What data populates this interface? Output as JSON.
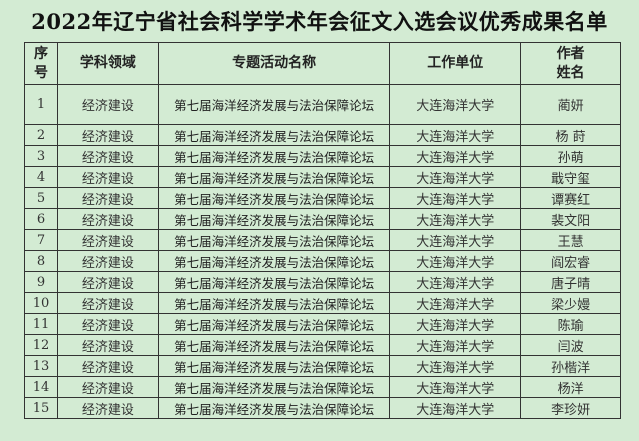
{
  "title": "2022年辽宁省社会科学学术年会征文入选会议优秀成果名单",
  "headers": [
    "序\n号",
    "学科领域",
    "专题活动名称",
    "工作单位",
    "作者\n姓名"
  ],
  "rows": [
    [
      "1",
      "经济建设",
      "第七届海洋经济发展与法治保障论坛",
      "大连海洋大学",
      "蔺妍"
    ],
    [
      "2",
      "经济建设",
      "第七届海洋经济发展与法治保障论坛",
      "大连海洋大学",
      "杨 莳"
    ],
    [
      "3",
      "经济建设",
      "第七届海洋经济发展与法治保障论坛",
      "大连海洋大学",
      "孙萌"
    ],
    [
      "4",
      "经济建设",
      "第七届海洋经济发展与法治保障论坛",
      "大连海洋大学",
      "戢守玺"
    ],
    [
      "5",
      "经济建设",
      "第七届海洋经济发展与法治保障论坛",
      "大连海洋大学",
      "谭赛红"
    ],
    [
      "6",
      "经济建设",
      "第七届海洋经济发展与法治保障论坛",
      "大连海洋大学",
      "裴文阳"
    ],
    [
      "7",
      "经济建设",
      "第七届海洋经济发展与法治保障论坛",
      "大连海洋大学",
      "王慧"
    ],
    [
      "8",
      "经济建设",
      "第七届海洋经济发展与法治保障论坛",
      "大连海洋大学",
      "阎宏睿"
    ],
    [
      "9",
      "经济建设",
      "第七届海洋经济发展与法治保障论坛",
      "大连海洋大学",
      "唐子晴"
    ],
    [
      "10",
      "经济建设",
      "第七届海洋经济发展与法治保障论坛",
      "大连海洋大学",
      "梁少嫚"
    ],
    [
      "11",
      "经济建设",
      "第七届海洋经济发展与法治保障论坛",
      "大连海洋大学",
      "陈瑜"
    ],
    [
      "12",
      "经济建设",
      "第七届海洋经济发展与法治保障论坛",
      "大连海洋大学",
      "闫波"
    ],
    [
      "13",
      "经济建设",
      "第七届海洋经济发展与法治保障论坛",
      "大连海洋大学",
      "孙楷洋"
    ],
    [
      "14",
      "经济建设",
      "第七届海洋经济发展与法治保障论坛",
      "大连海洋大学",
      "杨洋"
    ],
    [
      "15",
      "经济建设",
      "第七届海洋经济发展与法治保障论坛",
      "大连海洋大学",
      "李珍妍"
    ]
  ],
  "colors": {
    "background": "#d3ebd3",
    "border": "#333333"
  }
}
